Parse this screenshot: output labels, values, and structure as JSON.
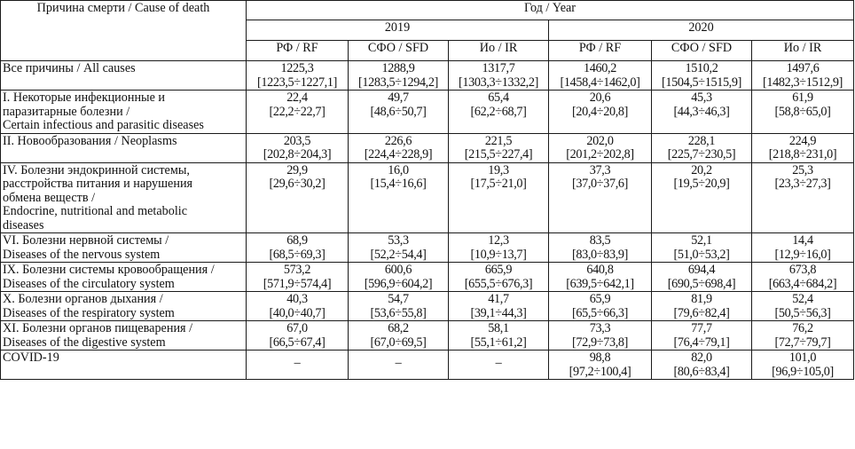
{
  "header": {
    "cause_label": "Причина смерти / Cause of death",
    "group_label": "Год / Year",
    "years": [
      "2019",
      "2020"
    ],
    "sub_labels": [
      "РФ / RF",
      "СФО / SFD",
      "Ио / IR",
      "РФ / RF",
      "СФО / SFD",
      "Ио / IR"
    ]
  },
  "rows": [
    {
      "cause": [
        "Все причины / All causes"
      ],
      "cells": [
        {
          "v": "1225,3",
          "ci": "[1223,5÷1227,1]"
        },
        {
          "v": "1288,9",
          "ci": "[1283,5÷1294,2]"
        },
        {
          "v": "1317,7",
          "ci": "[1303,3÷1332,2]"
        },
        {
          "v": "1460,2",
          "ci": "[1458,4÷1462,0]"
        },
        {
          "v": "1510,2",
          "ci": "[1504,5÷1515,9]"
        },
        {
          "v": "1497,6",
          "ci": "[1482,3÷1512,9]"
        }
      ]
    },
    {
      "cause": [
        "I. Некоторые инфекционные и",
        "паразитарные болезни /",
        "Certain infectious and parasitic diseases"
      ],
      "cells": [
        {
          "v": "22,4",
          "ci": "[22,2÷22,7]"
        },
        {
          "v": "49,7",
          "ci": "[48,6÷50,7]"
        },
        {
          "v": "65,4",
          "ci": "[62,2÷68,7]"
        },
        {
          "v": "20,6",
          "ci": "[20,4÷20,8]"
        },
        {
          "v": "45,3",
          "ci": "[44,3÷46,3]"
        },
        {
          "v": "61,9",
          "ci": "[58,8÷65,0]"
        }
      ]
    },
    {
      "cause": [
        "II. Новообразования / Neoplasms"
      ],
      "cells": [
        {
          "v": "203,5",
          "ci": "[202,8÷204,3]"
        },
        {
          "v": "226,6",
          "ci": "[224,4÷228,9]"
        },
        {
          "v": "221,5",
          "ci": "[215,5÷227,4]"
        },
        {
          "v": "202,0",
          "ci": "[201,2÷202,8]"
        },
        {
          "v": "228,1",
          "ci": "[225,7÷230,5]"
        },
        {
          "v": "224,9",
          "ci": "[218,8÷231,0]"
        }
      ]
    },
    {
      "cause": [
        "IV. Болезни эндокринной системы,",
        "расстройства питания и нарушения",
        "обмена веществ /",
        "Endocrine, nutritional and metabolic",
        "diseases"
      ],
      "cells": [
        {
          "v": "29,9",
          "ci": "[29,6÷30,2]"
        },
        {
          "v": "16,0",
          "ci": "[15,4÷16,6]"
        },
        {
          "v": "19,3",
          "ci": "[17,5÷21,0]"
        },
        {
          "v": "37,3",
          "ci": "[37,0÷37,6]"
        },
        {
          "v": "20,2",
          "ci": "[19,5÷20,9]"
        },
        {
          "v": "25,3",
          "ci": "[23,3÷27,3]"
        }
      ]
    },
    {
      "cause": [
        "VI. Болезни нервной системы /",
        "Diseases of the nervous system"
      ],
      "cells": [
        {
          "v": "68,9",
          "ci": "[68,5÷69,3]"
        },
        {
          "v": "53,3",
          "ci": "[52,2÷54,4]"
        },
        {
          "v": "12,3",
          "ci": "[10,9÷13,7]"
        },
        {
          "v": "83,5",
          "ci": "[83,0÷83,9]"
        },
        {
          "v": "52,1",
          "ci": "[51,0÷53,2]"
        },
        {
          "v": "14,4",
          "ci": "[12,9÷16,0]"
        }
      ]
    },
    {
      "cause": [
        "IX. Болезни системы кровообращения /",
        "Diseases of the circulatory system"
      ],
      "cells": [
        {
          "v": "573,2",
          "ci": "[571,9÷574,4]"
        },
        {
          "v": "600,6",
          "ci": "[596,9÷604,2]"
        },
        {
          "v": "665,9",
          "ci": "[655,5÷676,3]"
        },
        {
          "v": "640,8",
          "ci": "[639,5÷642,1]"
        },
        {
          "v": "694,4",
          "ci": "[690,5÷698,4]"
        },
        {
          "v": "673,8",
          "ci": "[663,4÷684,2]"
        }
      ]
    },
    {
      "cause": [
        "X. Болезни органов дыхания /",
        "Diseases of the respiratory system"
      ],
      "cells": [
        {
          "v": "40,3",
          "ci": "[40,0÷40,7]"
        },
        {
          "v": "54,7",
          "ci": "[53,6÷55,8]"
        },
        {
          "v": "41,7",
          "ci": "[39,1÷44,3]"
        },
        {
          "v": "65,9",
          "ci": "[65,5÷66,3]"
        },
        {
          "v": "81,9",
          "ci": "[79,6÷82,4]"
        },
        {
          "v": "52,4",
          "ci": "[50,5÷56,3]"
        }
      ]
    },
    {
      "cause": [
        "XI. Болезни органов пищеварения /",
        "Diseases of the digestive system"
      ],
      "cells": [
        {
          "v": "67,0",
          "ci": "[66,5÷67,4]"
        },
        {
          "v": "68,2",
          "ci": "[67,0÷69,5]"
        },
        {
          "v": "58,1",
          "ci": "[55,1÷61,2]"
        },
        {
          "v": "73,3",
          "ci": "[72,9÷73,8]"
        },
        {
          "v": "77,7",
          "ci": "[76,4÷79,1]"
        },
        {
          "v": "76,2",
          "ci": "[72,7÷79,7]"
        }
      ]
    },
    {
      "cause": [
        "COVID-19"
      ],
      "cells": [
        {
          "dash": "–"
        },
        {
          "dash": "–"
        },
        {
          "dash": "–"
        },
        {
          "v": "98,8",
          "ci": "[97,2÷100,4]"
        },
        {
          "v": "82,0",
          "ci": "[80,6÷83,4]"
        },
        {
          "v": "101,0",
          "ci": "[96,9÷105,0]"
        }
      ]
    }
  ]
}
